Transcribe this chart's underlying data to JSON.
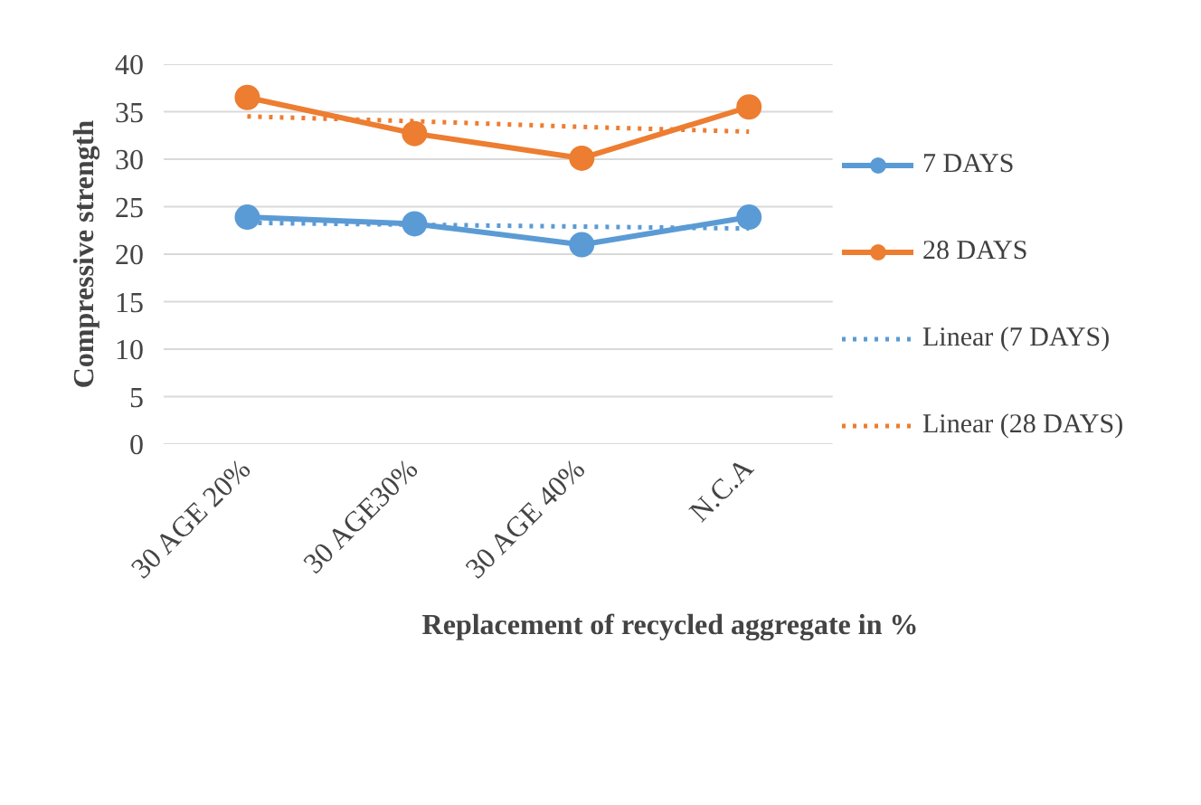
{
  "chart_data": {
    "type": "line",
    "xlabel": "Replacement of  recycled aggregate in %",
    "ylabel": "Compressive strength",
    "categories": [
      "30 AGE 20%",
      "30 AGE30%",
      "30 AGE 40%",
      "N.C.A"
    ],
    "series": [
      {
        "name": "7 DAYS",
        "color": "#5b9bd5",
        "values": [
          23.9,
          23.2,
          21.0,
          23.9
        ],
        "marker": "circle",
        "line_style": "solid"
      },
      {
        "name": "28 DAYS",
        "color": "#ed7d31",
        "values": [
          36.5,
          32.7,
          30.1,
          35.5
        ],
        "marker": "circle",
        "line_style": "solid"
      },
      {
        "name": "Linear (7 DAYS)",
        "color": "#5b9bd5",
        "values": [
          23.3,
          23.1,
          22.9,
          22.7
        ],
        "marker": "none",
        "line_style": "dotted"
      },
      {
        "name": "Linear (28 DAYS)",
        "color": "#ed7d31",
        "values": [
          34.5,
          34.0,
          33.4,
          32.9
        ],
        "marker": "none",
        "line_style": "dotted"
      }
    ],
    "ylim": [
      0,
      40
    ],
    "yticks": [
      0,
      5,
      10,
      15,
      20,
      25,
      30,
      35,
      40
    ],
    "grid": "y",
    "legend": "right"
  }
}
